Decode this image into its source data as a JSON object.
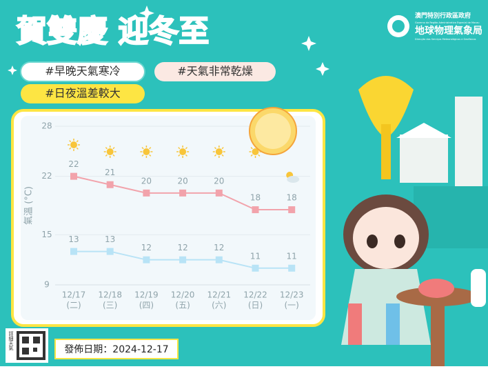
{
  "header": {
    "title": "賀雙慶 迎冬至",
    "tags": [
      "#早晚天氣寒冷",
      "#天氣非常乾燥",
      "#日夜溫差較大"
    ],
    "org_zh": "澳門特別行政區政府",
    "org_pt": "Governo da Região Administrativa Especial de Macau",
    "dept_zh": "地球物理氣象局",
    "dept_pt": "Direcção dos Serviços Meteorológicos e Geofísicos"
  },
  "chart_data": {
    "type": "line",
    "y_label": "氣溫 (°C)",
    "categories": [
      "12/17",
      "12/18",
      "12/19",
      "12/20",
      "12/21",
      "12/22",
      "12/23"
    ],
    "weekdays": [
      "(二)",
      "(三)",
      "(四)",
      "(五)",
      "(六)",
      "(日)",
      "(一)"
    ],
    "series": [
      {
        "color": "#f2a3ab",
        "values": [
          22,
          21,
          20,
          20,
          20,
          18,
          18
        ]
      },
      {
        "color": "#b8e3f6",
        "values": [
          13,
          13,
          12,
          12,
          12,
          11,
          11
        ]
      }
    ],
    "ylim": [
      9,
      28
    ],
    "yticks": [
      9,
      15,
      22,
      28
    ],
    "grid": true
  },
  "footer": {
    "qr_label": "詳細天氣",
    "date": "發佈日期：2024-12-17"
  }
}
